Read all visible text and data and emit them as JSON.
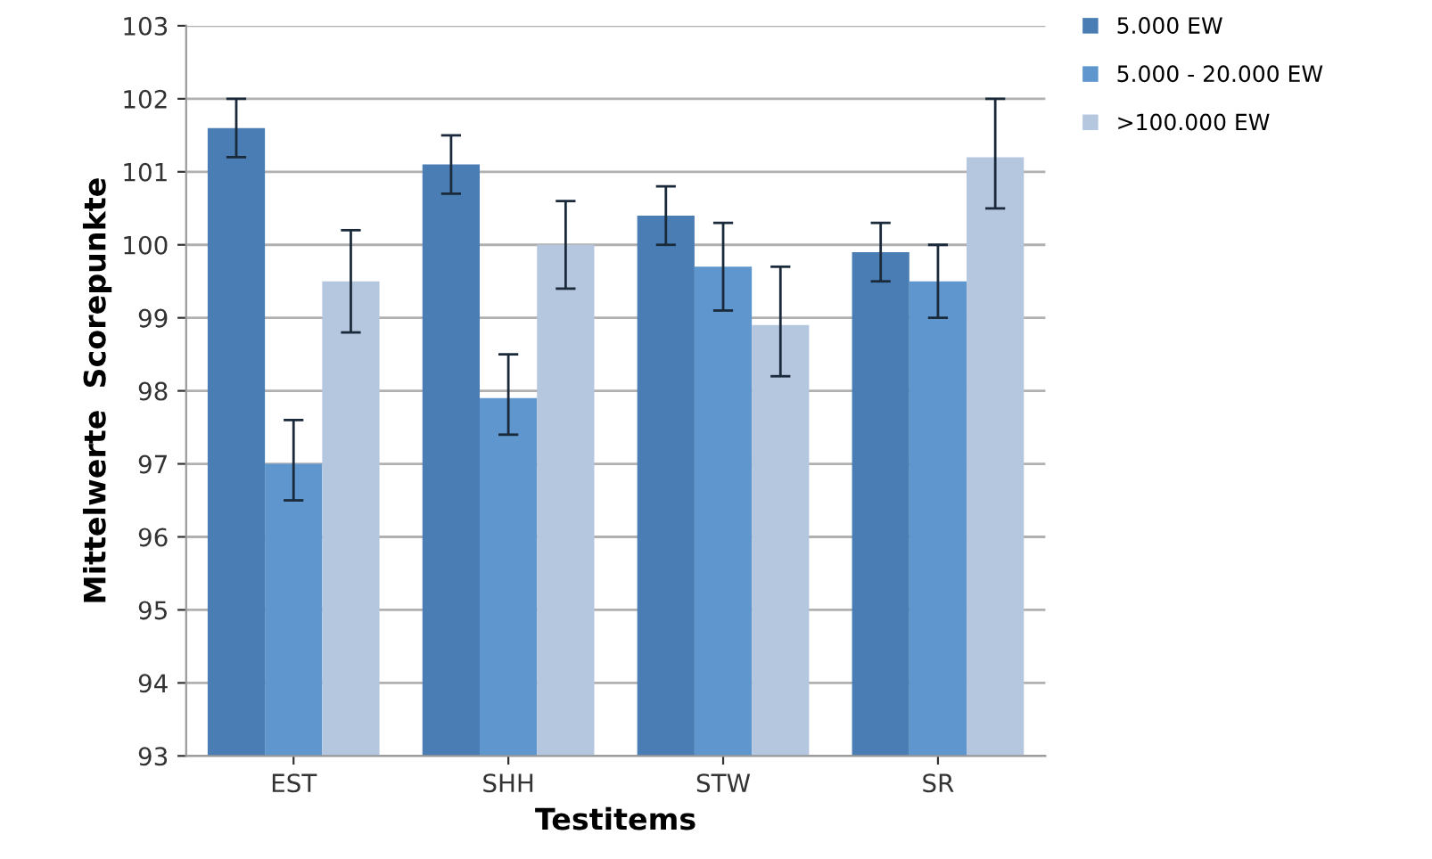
{
  "chart_data": {
    "type": "bar",
    "xlabel": "Testitems",
    "ylabel": "Mittelwerte  Scorepunkte",
    "categories": [
      "EST",
      "SHH",
      "STW",
      "SR"
    ],
    "series": [
      {
        "name": "5.000 EW",
        "color": "#4a7db4",
        "values": [
          101.6,
          101.1,
          100.4,
          99.9
        ],
        "errors": [
          [
            101.2,
            102.0
          ],
          [
            100.7,
            101.5
          ],
          [
            100.0,
            100.8
          ],
          [
            99.5,
            100.3
          ]
        ]
      },
      {
        "name": "5.000 - 20.000 EW",
        "color": "#5e96cd",
        "values": [
          97.0,
          97.9,
          99.7,
          99.5
        ],
        "errors": [
          [
            96.5,
            97.6
          ],
          [
            97.4,
            98.5
          ],
          [
            99.1,
            100.3
          ],
          [
            99.0,
            100.0
          ]
        ]
      },
      {
        "name": ">100.000 EW",
        "color": "#b5c6df",
        "values": [
          99.5,
          100.0,
          98.9,
          101.2
        ],
        "errors": [
          [
            98.8,
            100.2
          ],
          [
            99.4,
            100.6
          ],
          [
            98.2,
            99.7
          ],
          [
            100.5,
            102.0
          ]
        ]
      }
    ],
    "ylim": [
      93,
      103
    ],
    "yticks": [
      93,
      94,
      95,
      96,
      97,
      98,
      99,
      100,
      101,
      102,
      103
    ],
    "grid": "y",
    "legend": "top right"
  }
}
